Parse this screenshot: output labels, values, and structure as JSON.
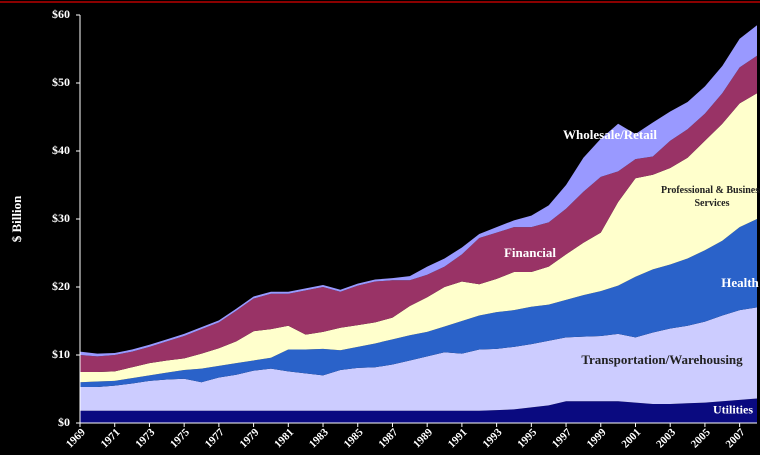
{
  "chart_data": {
    "type": "stacked_area",
    "y_label": "$ Billion",
    "x": [
      1969,
      1970,
      1971,
      1972,
      1973,
      1974,
      1975,
      1976,
      1977,
      1978,
      1979,
      1980,
      1981,
      1982,
      1983,
      1984,
      1985,
      1986,
      1987,
      1988,
      1989,
      1990,
      1991,
      1992,
      1993,
      1994,
      1995,
      1996,
      1997,
      1998,
      1999,
      2000,
      2001,
      2002,
      2003,
      2004,
      2005,
      2006,
      2007,
      2008
    ],
    "xlim": [
      1969,
      2008
    ],
    "xticks": [
      1969,
      1971,
      1973,
      1975,
      1977,
      1979,
      1981,
      1983,
      1985,
      1987,
      1989,
      1991,
      1993,
      1995,
      1997,
      1999,
      2001,
      2003,
      2005,
      2007
    ],
    "ylim": [
      0,
      60
    ],
    "yticks": [
      {
        "value": 0,
        "label": "$0"
      },
      {
        "value": 10,
        "label": "$10"
      },
      {
        "value": 20,
        "label": "$20"
      },
      {
        "value": 30,
        "label": "$30"
      },
      {
        "value": 40,
        "label": "$40"
      },
      {
        "value": 50,
        "label": "$50"
      },
      {
        "value": 60,
        "label": "$60"
      }
    ],
    "series": [
      {
        "name": "Utilities",
        "color": "#0a0a80",
        "values": [
          1.8,
          1.8,
          1.8,
          1.8,
          1.8,
          1.8,
          1.8,
          1.8,
          1.8,
          1.8,
          1.8,
          1.8,
          1.8,
          1.8,
          1.8,
          1.8,
          1.8,
          1.8,
          1.8,
          1.8,
          1.8,
          1.8,
          1.8,
          1.8,
          1.9,
          2.0,
          2.3,
          2.6,
          3.2,
          3.2,
          3.2,
          3.2,
          3.0,
          2.8,
          2.8,
          2.9,
          3.0,
          3.2,
          3.4,
          3.6
        ]
      },
      {
        "name": "Transportation/Warehousing",
        "color": "#ccccff",
        "values": [
          3.5,
          3.5,
          3.7,
          4.0,
          4.4,
          4.6,
          4.7,
          4.2,
          4.9,
          5.3,
          5.9,
          6.2,
          5.8,
          5.5,
          5.2,
          6.0,
          6.3,
          6.4,
          6.8,
          7.4,
          8.0,
          8.6,
          8.4,
          9.0,
          9.0,
          9.2,
          9.3,
          9.5,
          9.4,
          9.5,
          9.6,
          9.9,
          9.6,
          10.5,
          11.1,
          11.4,
          11.9,
          12.6,
          13.2,
          13.4
        ]
      },
      {
        "name": "Health",
        "color": "#2a62c9",
        "values": [
          0.7,
          0.8,
          0.7,
          0.8,
          0.8,
          1.0,
          1.3,
          2.0,
          1.7,
          1.7,
          1.5,
          1.6,
          3.2,
          3.5,
          3.9,
          2.9,
          3.1,
          3.5,
          3.7,
          3.7,
          3.6,
          3.8,
          4.8,
          5.0,
          5.4,
          5.4,
          5.5,
          5.3,
          5.5,
          6.1,
          6.6,
          7.1,
          8.9,
          9.3,
          9.4,
          9.9,
          10.5,
          11.0,
          12.2,
          13.0
        ]
      },
      {
        "name": "Professional & Business Services",
        "color": "#ffffcc",
        "values": [
          1.5,
          1.4,
          1.4,
          1.6,
          1.8,
          1.8,
          1.7,
          2.2,
          2.6,
          3.2,
          4.3,
          4.2,
          3.5,
          2.2,
          2.5,
          3.3,
          3.2,
          3.1,
          3.2,
          4.3,
          5.1,
          5.8,
          5.8,
          4.6,
          4.9,
          5.6,
          5.1,
          5.6,
          6.7,
          7.7,
          8.6,
          12.3,
          14.5,
          13.9,
          14.2,
          14.8,
          16.1,
          17.2,
          18.2,
          18.5
        ]
      },
      {
        "name": "Financial",
        "color": "#993366",
        "values": [
          2.5,
          2.3,
          2.4,
          2.3,
          2.4,
          2.8,
          3.3,
          3.6,
          3.8,
          4.5,
          4.8,
          5.2,
          4.7,
          6.5,
          6.6,
          5.3,
          5.8,
          6.0,
          5.5,
          3.8,
          3.3,
          3.0,
          4.0,
          6.8,
          6.8,
          6.6,
          6.6,
          6.5,
          6.7,
          7.5,
          8.2,
          4.5,
          2.8,
          2.7,
          4.0,
          4.2,
          4.0,
          4.5,
          5.3,
          5.5
        ]
      },
      {
        "name": "Wholesale/Retail",
        "color": "#9999ff",
        "values": [
          0.5,
          0.4,
          0.3,
          0.3,
          0.3,
          0.3,
          0.3,
          0.3,
          0.3,
          0.3,
          0.3,
          0.3,
          0.3,
          0.3,
          0.3,
          0.3,
          0.3,
          0.3,
          0.3,
          0.6,
          1.2,
          1.2,
          1.0,
          0.6,
          0.8,
          1.0,
          1.7,
          2.5,
          3.5,
          5.0,
          5.6,
          7.0,
          3.7,
          5.0,
          4.3,
          4.0,
          4.0,
          4.0,
          4.2,
          4.5
        ]
      }
    ]
  }
}
